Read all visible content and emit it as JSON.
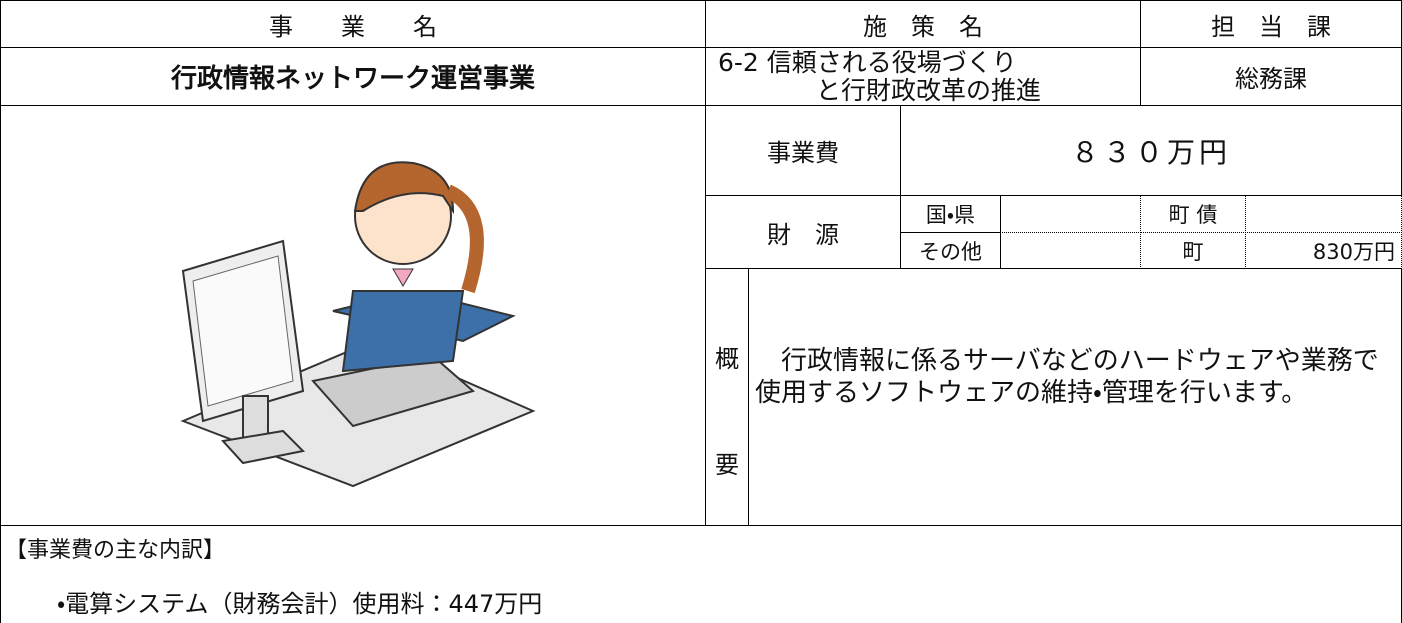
{
  "header": {
    "project_label": "事　　業　　名",
    "policy_label": "施　策　名",
    "department_label": "担　当　課"
  },
  "project": {
    "name": "行政情報ネットワーク運営事業",
    "policy": [
      "6-2 信頼される役場づくり",
      "と行財政改革の推進"
    ],
    "department": "総務課"
  },
  "cost": {
    "label": "事業費",
    "value": "８３０万円"
  },
  "funding": {
    "label": "財　源",
    "national_prefectural": "国・県",
    "national_prefectural_amount": "",
    "town_bond": "町 債",
    "town_bond_amount": "",
    "other": "その他",
    "other_amount": "",
    "town": "町",
    "town_amount": "830万円"
  },
  "overview": {
    "label_top": "概",
    "label_bottom": "要",
    "text": "　行政情報に係るサーバなどのハードウェアや業務で使用するソフトウェアの維持・管理を行います。"
  },
  "breakdown": {
    "title": "【事業費の主な内訳】",
    "items": [
      "・電算システム（財務会計）使用料：447万円"
    ]
  }
}
